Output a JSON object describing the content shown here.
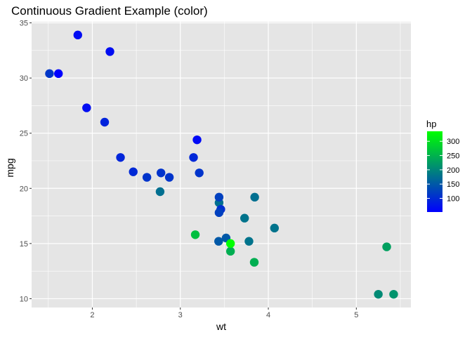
{
  "chart_data": {
    "type": "scatter",
    "title": "Continuous Gradient Example (color)",
    "xlabel": "wt",
    "ylabel": "mpg",
    "xlim": [
      1.31,
      5.62
    ],
    "ylim": [
      9.2,
      35.1
    ],
    "x_ticks": [
      2,
      3,
      4,
      5
    ],
    "y_ticks": [
      10,
      15,
      20,
      25,
      30,
      35
    ],
    "x_minor": [
      1.5,
      2.5,
      3.5,
      4.5,
      5.5
    ],
    "y_minor": [
      12.5,
      17.5,
      22.5,
      27.5,
      32.5
    ],
    "grid": true,
    "panel_background": "#e5e5e5",
    "grid_color": "#ffffff",
    "legend": {
      "title": "hp",
      "placement": "right",
      "range": [
        52,
        335
      ],
      "breaks": [
        100,
        150,
        200,
        250,
        300
      ],
      "low_color": "#0000ff",
      "high_color": "#00ff00"
    },
    "points": [
      {
        "x": 2.62,
        "y": 21.0,
        "hp": 110
      },
      {
        "x": 2.875,
        "y": 21.0,
        "hp": 110
      },
      {
        "x": 2.32,
        "y": 22.8,
        "hp": 93
      },
      {
        "x": 3.215,
        "y": 21.4,
        "hp": 110
      },
      {
        "x": 3.44,
        "y": 18.7,
        "hp": 175
      },
      {
        "x": 3.46,
        "y": 18.1,
        "hp": 105
      },
      {
        "x": 3.57,
        "y": 14.3,
        "hp": 245
      },
      {
        "x": 3.19,
        "y": 24.4,
        "hp": 62
      },
      {
        "x": 3.15,
        "y": 22.8,
        "hp": 95
      },
      {
        "x": 3.44,
        "y": 19.2,
        "hp": 123
      },
      {
        "x": 3.44,
        "y": 17.8,
        "hp": 123
      },
      {
        "x": 4.07,
        "y": 16.4,
        "hp": 180
      },
      {
        "x": 3.73,
        "y": 17.3,
        "hp": 180
      },
      {
        "x": 3.78,
        "y": 15.2,
        "hp": 180
      },
      {
        "x": 5.25,
        "y": 10.4,
        "hp": 205
      },
      {
        "x": 5.424,
        "y": 10.4,
        "hp": 215
      },
      {
        "x": 5.345,
        "y": 14.7,
        "hp": 230
      },
      {
        "x": 2.2,
        "y": 32.4,
        "hp": 66
      },
      {
        "x": 1.615,
        "y": 30.4,
        "hp": 52
      },
      {
        "x": 1.835,
        "y": 33.9,
        "hp": 65
      },
      {
        "x": 2.465,
        "y": 21.5,
        "hp": 97
      },
      {
        "x": 3.52,
        "y": 15.5,
        "hp": 150
      },
      {
        "x": 3.435,
        "y": 15.2,
        "hp": 150
      },
      {
        "x": 3.84,
        "y": 13.3,
        "hp": 245
      },
      {
        "x": 3.845,
        "y": 19.2,
        "hp": 175
      },
      {
        "x": 1.935,
        "y": 27.3,
        "hp": 66
      },
      {
        "x": 2.14,
        "y": 26.0,
        "hp": 91
      },
      {
        "x": 1.513,
        "y": 30.4,
        "hp": 113
      },
      {
        "x": 3.17,
        "y": 15.8,
        "hp": 264
      },
      {
        "x": 2.77,
        "y": 19.7,
        "hp": 175
      },
      {
        "x": 3.57,
        "y": 15.0,
        "hp": 335
      },
      {
        "x": 2.78,
        "y": 21.4,
        "hp": 109
      }
    ]
  }
}
